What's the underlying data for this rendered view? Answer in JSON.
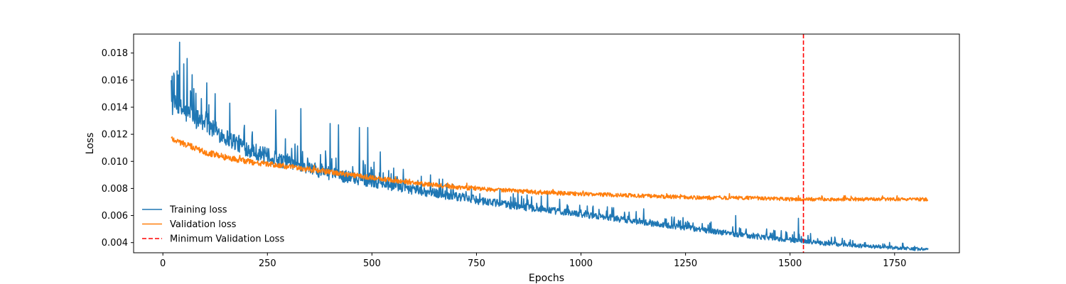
{
  "chart_data": {
    "type": "line",
    "title": "",
    "xlabel": "Epochs",
    "ylabel": "Loss",
    "xlim": [
      -70,
      1905
    ],
    "ylim": [
      0.00325,
      0.0194
    ],
    "xticks": [
      0,
      250,
      500,
      750,
      1000,
      1250,
      1500,
      1750
    ],
    "yticks": [
      0.004,
      0.006,
      0.008,
      0.01,
      0.012,
      0.014,
      0.016,
      0.018
    ],
    "ytick_labels": [
      "0.004",
      "0.006",
      "0.008",
      "0.010",
      "0.012",
      "0.014",
      "0.016",
      "0.018"
    ],
    "grid": false,
    "legend_position": "lower-left",
    "x_start": 20,
    "x_end": 1830,
    "series": [
      {
        "name": "Training loss",
        "color": "#1f77b4",
        "anchors": [
          [
            20,
            0.0142
          ],
          [
            50,
            0.0137
          ],
          [
            100,
            0.0128
          ],
          [
            150,
            0.0118
          ],
          [
            200,
            0.011
          ],
          [
            250,
            0.0104
          ],
          [
            300,
            0.0099
          ],
          [
            350,
            0.0095
          ],
          [
            400,
            0.0091
          ],
          [
            450,
            0.0088
          ],
          [
            500,
            0.0085
          ],
          [
            600,
            0.0079
          ],
          [
            700,
            0.0074
          ],
          [
            800,
            0.0069
          ],
          [
            900,
            0.0065
          ],
          [
            1000,
            0.0061
          ],
          [
            1100,
            0.0057
          ],
          [
            1200,
            0.0053
          ],
          [
            1300,
            0.0049
          ],
          [
            1400,
            0.0045
          ],
          [
            1500,
            0.0042
          ],
          [
            1600,
            0.0039
          ],
          [
            1700,
            0.0037
          ],
          [
            1830,
            0.0035
          ]
        ],
        "noise_amplitude": [
          [
            20,
            0.0015
          ],
          [
            100,
            0.0012
          ],
          [
            300,
            0.0009
          ],
          [
            600,
            0.0006
          ],
          [
            1000,
            0.0004
          ],
          [
            1500,
            0.0003
          ],
          [
            1830,
            0.0002
          ]
        ],
        "peaks": [
          [
            22,
            0.0163
          ],
          [
            25,
            0.0147
          ],
          [
            40,
            0.0188
          ],
          [
            50,
            0.0172
          ],
          [
            58,
            0.0176
          ],
          [
            70,
            0.0164
          ],
          [
            105,
            0.0158
          ],
          [
            125,
            0.015
          ],
          [
            160,
            0.0143
          ],
          [
            270,
            0.0138
          ],
          [
            330,
            0.0139
          ],
          [
            400,
            0.0128
          ],
          [
            420,
            0.0127
          ],
          [
            470,
            0.0125
          ],
          [
            490,
            0.0125
          ],
          [
            520,
            0.0107
          ],
          [
            640,
            0.009
          ],
          [
            920,
            0.0076
          ],
          [
            1150,
            0.0065
          ],
          [
            1370,
            0.006
          ],
          [
            1520,
            0.0058
          ]
        ]
      },
      {
        "name": "Validation loss",
        "color": "#ff7f0e",
        "anchors": [
          [
            20,
            0.0117
          ],
          [
            50,
            0.0113
          ],
          [
            100,
            0.0107
          ],
          [
            150,
            0.0103
          ],
          [
            200,
            0.01
          ],
          [
            250,
            0.0098
          ],
          [
            300,
            0.0096
          ],
          [
            350,
            0.0094
          ],
          [
            400,
            0.0092
          ],
          [
            450,
            0.009
          ],
          [
            500,
            0.0088
          ],
          [
            600,
            0.0084
          ],
          [
            700,
            0.0081
          ],
          [
            800,
            0.0079
          ],
          [
            900,
            0.0077
          ],
          [
            1000,
            0.0076
          ],
          [
            1100,
            0.0075
          ],
          [
            1200,
            0.0074
          ],
          [
            1300,
            0.0073
          ],
          [
            1400,
            0.0073
          ],
          [
            1500,
            0.0072
          ],
          [
            1600,
            0.0072
          ],
          [
            1700,
            0.0072
          ],
          [
            1830,
            0.0072
          ]
        ],
        "noise_amplitude": [
          [
            20,
            0.0004
          ],
          [
            500,
            0.0003
          ],
          [
            1000,
            0.00025
          ],
          [
            1830,
            0.0002
          ]
        ]
      },
      {
        "name": "Minimum Validation Loss",
        "color": "#ff0000",
        "style": "dashed",
        "vline_x": 1532
      }
    ]
  }
}
